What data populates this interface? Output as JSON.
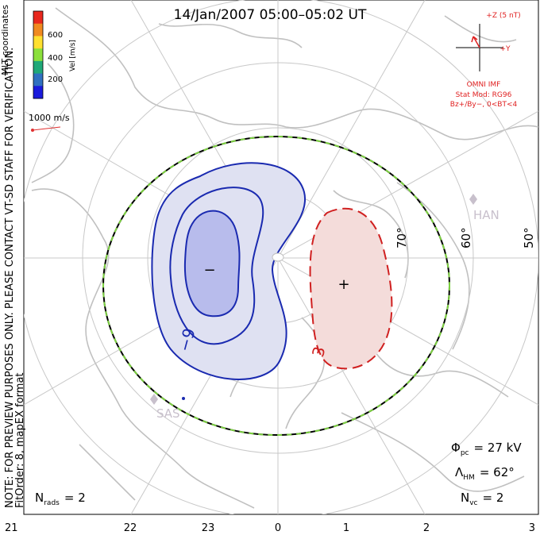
{
  "title": "14/Jan/2007 05:00–05:02 UT",
  "colorbar": {
    "label": "Vel [m/s]",
    "ticks": [
      "600",
      "400",
      "200"
    ],
    "colors": [
      "#e8281e",
      "#f08a20",
      "#ffe030",
      "#8ce03c",
      "#20a878",
      "#3070c0",
      "#1a1adc"
    ]
  },
  "coordinates_label": "MLT coordinates",
  "scale_vector": {
    "label": "1000 m/s",
    "color": "#e03030"
  },
  "notes": {
    "line1": "NOTE: FOR PREVIEW PURPOSES ONLY. PLEASE CONTACT VT-SD STAFF FOR VERIFICATION.",
    "line2": "FitOrder: 8, mapEX format"
  },
  "imf": {
    "z_label": "+Z (5 nT)",
    "y_label": "+Y",
    "source": "OMNI IMF",
    "model": "Stat Mod: RG96",
    "condition": "Bz+/By−, 0<BT<4",
    "color": "#e02020"
  },
  "latitude_labels": [
    "70°",
    "60°",
    "50°"
  ],
  "stations": [
    {
      "name": "HAN",
      "color": "#c8c0cc"
    },
    {
      "name": "SAS",
      "color": "#c8c0cc"
    }
  ],
  "contours": {
    "negative": {
      "label": "−9",
      "center_symbol": "−",
      "color": "#1a2ab0",
      "fill": "#dfe1f2",
      "fill_inner": "#b8bcec"
    },
    "positive": {
      "label": "3",
      "center_symbol": "+",
      "color": "#d02020",
      "fill": "#f4dcda"
    }
  },
  "stats": {
    "phi_pc": {
      "symbol": "Φ",
      "sub": "pc",
      "value": "= 27 kV"
    },
    "lambda_hm": {
      "symbol": "Λ",
      "sub": "HM",
      "value": "= 62°"
    },
    "n_rads": {
      "symbol": "N",
      "sub": "rads",
      "value": "= 2"
    },
    "n_vc": {
      "symbol": "N",
      "sub": "vc",
      "value": "= 2"
    }
  },
  "mlt_axis": [
    "21",
    "22",
    "23",
    "0",
    "1",
    "2",
    "3"
  ],
  "heppner_maynard_boundary": {
    "colors": [
      "#000000",
      "#7cd040"
    ]
  }
}
